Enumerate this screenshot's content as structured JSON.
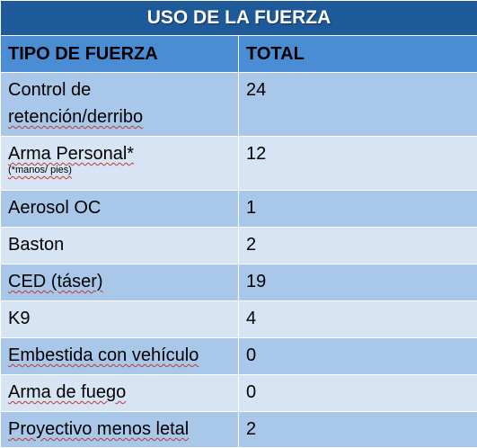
{
  "table": {
    "title": "USO DE LA FUERZA",
    "headers": [
      "TIPO DE FUERZA",
      "TOTAL"
    ],
    "rows": [
      {
        "type_line1": "Control de",
        "type_line2": "retención/derribo",
        "note": "",
        "total": "24"
      },
      {
        "type_line1": "Arma Personal*",
        "type_line2": "",
        "note": "(*manos/ pies)",
        "total": "12"
      },
      {
        "type_line1": "Aerosol OC",
        "type_line2": "",
        "note": "",
        "total": "1"
      },
      {
        "type_line1": "Baston",
        "type_line2": "",
        "note": "",
        "total": "2"
      },
      {
        "type_line1": "CED (táser)",
        "type_line2": "",
        "note": "",
        "total": "19"
      },
      {
        "type_line1": "K9",
        "type_line2": "",
        "note": "",
        "total": "4"
      },
      {
        "type_line1": "Embestida con vehículo",
        "type_line2": "",
        "note": "",
        "total": "0"
      },
      {
        "type_line1": "Arma de fuego",
        "type_line2": "",
        "note": "",
        "total": "0"
      },
      {
        "type_line1": "Proyectivo menos letal",
        "type_line2": "",
        "note": "",
        "total": "2"
      }
    ]
  },
  "colors": {
    "title_bg": "#1e5a9a",
    "header_bg": "#4a8dd4",
    "row_dark": "#a9c8e9",
    "row_light": "#d6e4f4"
  }
}
